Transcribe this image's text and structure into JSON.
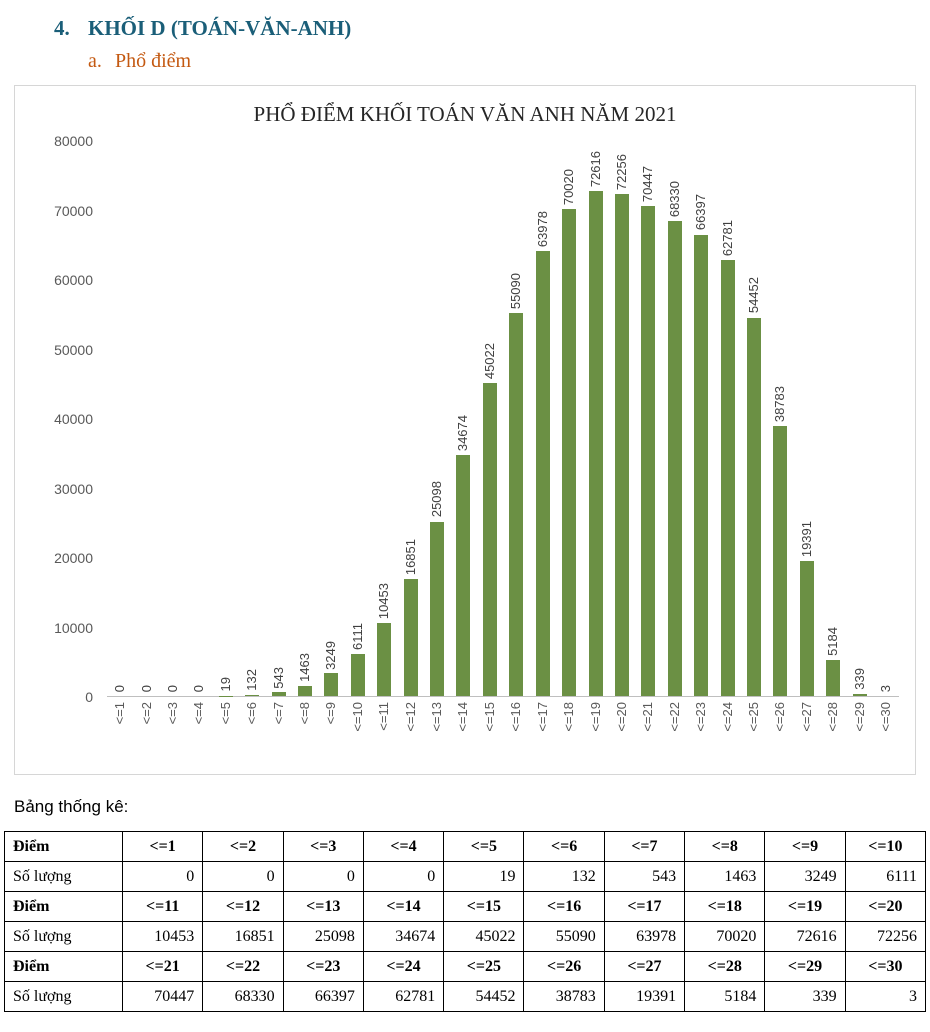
{
  "colors": {
    "heading": "#1a5e78",
    "subheading": "#c45911",
    "bar": "#6b9044",
    "axis_text": "#595959",
    "chart_border": "#d6d6d6",
    "table_border": "#000000"
  },
  "page": {
    "heading_number": "4.",
    "heading_title": "KHỐI D (TOÁN-VĂN-ANH)",
    "sub_letter": "a.",
    "sub_title": "Phổ điểm"
  },
  "chart_data": {
    "type": "bar",
    "title": "PHỔ ĐIỂM KHỐI TOÁN VĂN ANH NĂM 2021",
    "categories": [
      "<=1",
      "<=2",
      "<=3",
      "<=4",
      "<=5",
      "<=6",
      "<=7",
      "<=8",
      "<=9",
      "<=10",
      "<=11",
      "<=12",
      "<=13",
      "<=14",
      "<=15",
      "<=16",
      "<=17",
      "<=18",
      "<=19",
      "<=20",
      "<=21",
      "<=22",
      "<=23",
      "<=24",
      "<=25",
      "<=26",
      "<=27",
      "<=28",
      "<=29",
      "<=30"
    ],
    "values": [
      0,
      0,
      0,
      0,
      19,
      132,
      543,
      1463,
      3249,
      6111,
      10453,
      16851,
      25098,
      34674,
      45022,
      55090,
      63978,
      70020,
      72616,
      72256,
      70447,
      68330,
      66397,
      62781,
      54452,
      38783,
      19391,
      5184,
      339,
      3
    ],
    "xlabel": "",
    "ylabel": "",
    "ylim": [
      0,
      80000
    ],
    "ytick_step": 10000,
    "grid": false,
    "legend": false,
    "value_label_rotation": -90,
    "x_label_rotation": -90
  },
  "table": {
    "caption": "Bảng thống kê:",
    "row_label_score": "Điểm",
    "row_label_count": "Số lượng",
    "groups": [
      {
        "scores": [
          "<=1",
          "<=2",
          "<=3",
          "<=4",
          "<=5",
          "<=6",
          "<=7",
          "<=8",
          "<=9",
          "<=10"
        ],
        "counts": [
          "0",
          "0",
          "0",
          "0",
          "19",
          "132",
          "543",
          "1463",
          "3249",
          "6111"
        ]
      },
      {
        "scores": [
          "<=11",
          "<=12",
          "<=13",
          "<=14",
          "<=15",
          "<=16",
          "<=17",
          "<=18",
          "<=19",
          "<=20"
        ],
        "counts": [
          "10453",
          "16851",
          "25098",
          "34674",
          "45022",
          "55090",
          "63978",
          "70020",
          "72616",
          "72256"
        ]
      },
      {
        "scores": [
          "<=21",
          "<=22",
          "<=23",
          "<=24",
          "<=25",
          "<=26",
          "<=27",
          "<=28",
          "<=29",
          "<=30"
        ],
        "counts": [
          "70447",
          "68330",
          "66397",
          "62781",
          "54452",
          "38783",
          "19391",
          "5184",
          "339",
          "3"
        ]
      }
    ]
  }
}
